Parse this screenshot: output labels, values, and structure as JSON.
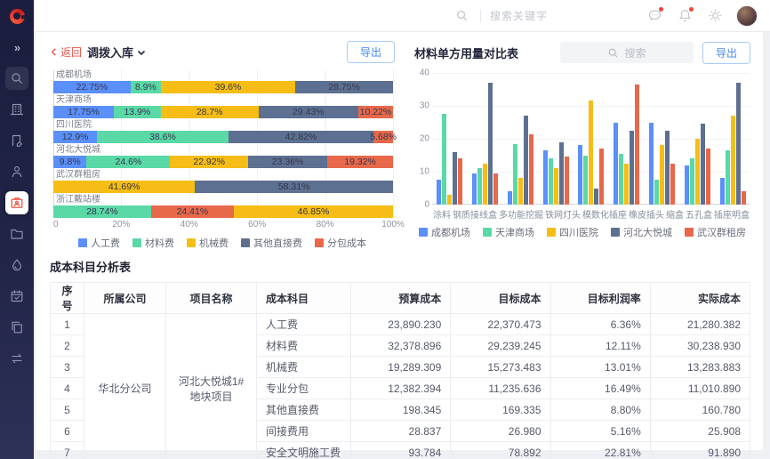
{
  "colors": {
    "blue": "#5B8FF9",
    "green": "#5AD8A6",
    "yellow": "#F6BD16",
    "slate": "#5D7092",
    "red": "#E8684A",
    "accent_red": "#E8594C",
    "export_blue": "#4487EE",
    "sidebar_bg": "#1B1E3E"
  },
  "topbar": {
    "search_placeholder": "搜索关键字"
  },
  "sidebar": {
    "collapse_icon": "chevrons-right",
    "items": [
      {
        "name": "search",
        "boxed": true
      },
      {
        "name": "building"
      },
      {
        "name": "document-edit"
      },
      {
        "name": "user-audit"
      },
      {
        "name": "work-card",
        "active": true
      },
      {
        "name": "folder"
      },
      {
        "name": "water-drop"
      },
      {
        "name": "calendar-check"
      },
      {
        "name": "copy-pages"
      },
      {
        "name": "transfer-arrows"
      }
    ]
  },
  "panel_left": {
    "back_label": "返回",
    "title": "调拨入库",
    "export_label": "导出"
  },
  "panel_right": {
    "title": "材料单方用量对比表",
    "search_placeholder": "搜索",
    "export_label": "导出"
  },
  "chart_data": [
    {
      "type": "bar",
      "orientation": "horizontal-stacked",
      "unit": "%",
      "x_ticks": [
        "0",
        "20%",
        "40%",
        "60%",
        "80%",
        "100%"
      ],
      "legend": [
        {
          "name": "人工费",
          "color": "blue"
        },
        {
          "name": "材料费",
          "color": "green"
        },
        {
          "name": "机械费",
          "color": "yellow"
        },
        {
          "name": "其他直接费",
          "color": "slate"
        },
        {
          "name": "分包成本",
          "color": "red"
        }
      ],
      "rows": [
        {
          "category": "成都机场",
          "segments": [
            {
              "name": "人工费",
              "color": "blue",
              "value": 22.75,
              "label": "22.75%"
            },
            {
              "name": "材料费",
              "color": "green",
              "value": 8.9,
              "label": "8.9%"
            },
            {
              "name": "机械费",
              "color": "yellow",
              "value": 39.6,
              "label": "39.6%"
            },
            {
              "name": "其他直接费",
              "color": "slate",
              "value": 28.75,
              "label": "28.75%"
            }
          ]
        },
        {
          "category": "天津商场",
          "segments": [
            {
              "name": "人工费",
              "color": "blue",
              "value": 17.75,
              "label": "17.75%"
            },
            {
              "name": "材料费",
              "color": "green",
              "value": 13.9,
              "label": "13.9%"
            },
            {
              "name": "机械费",
              "color": "yellow",
              "value": 28.7,
              "label": "28.7%"
            },
            {
              "name": "其他直接费",
              "color": "slate",
              "value": 29.43,
              "label": "29.43%"
            },
            {
              "name": "分包成本",
              "color": "red",
              "value": 10.22,
              "label": "10.22%"
            }
          ]
        },
        {
          "category": "四川医院",
          "segments": [
            {
              "name": "人工费",
              "color": "blue",
              "value": 12.9,
              "label": "12.9%"
            },
            {
              "name": "材料费",
              "color": "green",
              "value": 38.6,
              "label": "38.6%"
            },
            {
              "name": "其他直接费",
              "color": "slate",
              "value": 42.82,
              "label": "42.82%"
            },
            {
              "name": "分包成本",
              "color": "red",
              "value": 5.68,
              "label": "5.68%"
            }
          ]
        },
        {
          "category": "河北大悦城",
          "segments": [
            {
              "name": "人工费",
              "color": "blue",
              "value": 9.8,
              "label": "9.8%"
            },
            {
              "name": "材料费",
              "color": "green",
              "value": 24.6,
              "label": "24.6%"
            },
            {
              "name": "机械费",
              "color": "yellow",
              "value": 22.92,
              "label": "22.92%"
            },
            {
              "name": "其他直接费",
              "color": "slate",
              "value": 23.36,
              "label": "23.36%"
            },
            {
              "name": "分包成本",
              "color": "red",
              "value": 19.32,
              "label": "19.32%"
            }
          ]
        },
        {
          "category": "武汉群租房",
          "segments": [
            {
              "name": "机械费",
              "color": "yellow",
              "value": 41.69,
              "label": "41.69%"
            },
            {
              "name": "其他直接费",
              "color": "slate",
              "value": 58.31,
              "label": "58.31%"
            }
          ]
        },
        {
          "category": "浙江戴站楼",
          "segments": [
            {
              "name": "材料费",
              "color": "green",
              "value": 28.74,
              "label": "28.74%"
            },
            {
              "name": "分包成本",
              "color": "red",
              "value": 24.41,
              "label": "24.41%"
            },
            {
              "name": "机械费",
              "color": "yellow",
              "value": 46.85,
              "label": "46.85%"
            }
          ]
        }
      ]
    },
    {
      "type": "bar",
      "orientation": "vertical-grouped",
      "title": "材料单方用量对比表",
      "ylim": [
        0,
        40
      ],
      "y_ticks": [
        0,
        10,
        20,
        30,
        40
      ],
      "categories": [
        "涂料",
        "钢质接线盒",
        "多功能挖掘",
        "铁网灯头",
        "模数化插座",
        "橡皮插头",
        "缩盒",
        "五孔盒",
        "插座明盒"
      ],
      "series": [
        {
          "name": "成都机场",
          "color": "blue",
          "values": [
            7.5,
            9.5,
            4,
            16.5,
            18,
            25,
            25,
            12,
            8
          ]
        },
        {
          "name": "天津商场",
          "color": "green",
          "values": [
            27.5,
            11,
            18.5,
            14,
            15,
            15.5,
            7.5,
            14,
            16.5
          ]
        },
        {
          "name": "四川医院",
          "color": "yellow",
          "values": [
            3,
            12.5,
            8,
            11,
            31.5,
            12.5,
            18,
            20,
            27
          ]
        },
        {
          "name": "河北大悦城",
          "color": "slate",
          "values": [
            16,
            37,
            27,
            19,
            5,
            22.5,
            22.5,
            24.5,
            37
          ]
        },
        {
          "name": "武汉群租房",
          "color": "red",
          "values": [
            14,
            9.5,
            21.5,
            14.5,
            17,
            36.5,
            12.5,
            17,
            4
          ]
        }
      ]
    }
  ],
  "table": {
    "title": "成本科目分析表",
    "columns": [
      "序号",
      "所属公司",
      "项目名称",
      "成本科目",
      "预算成本",
      "目标成本",
      "目标利润率",
      "实际成本"
    ],
    "company": "华北分公司",
    "project": "河北大悦城1#地块项目",
    "rows": [
      {
        "no": "1",
        "subject": "人工费",
        "budget": "23,890.230",
        "target": "22,370.473",
        "margin": "6.36%",
        "actual": "21,280.382"
      },
      {
        "no": "2",
        "subject": "材料费",
        "budget": "32,378.896",
        "target": "29,239.245",
        "margin": "12.11%",
        "actual": "30,238.930"
      },
      {
        "no": "3",
        "subject": "机械费",
        "budget": "19,289.309",
        "target": "15,273.483",
        "margin": "13.01%",
        "actual": "13,283.883"
      },
      {
        "no": "4",
        "subject": "专业分包",
        "budget": "12,382.394",
        "target": "11,235.636",
        "margin": "16.49%",
        "actual": "11,010.890"
      },
      {
        "no": "5",
        "subject": "其他直接费",
        "budget": "198.345",
        "target": "169.335",
        "margin": "8.80%",
        "actual": "160.780"
      },
      {
        "no": "6",
        "subject": "间接费用",
        "budget": "28.837",
        "target": "26.980",
        "margin": "5.16%",
        "actual": "25.908"
      },
      {
        "no": "7",
        "subject": "安全文明施工费",
        "budget": "93.784",
        "target": "78.892",
        "margin": "22.81%",
        "actual": "91.890"
      }
    ]
  }
}
